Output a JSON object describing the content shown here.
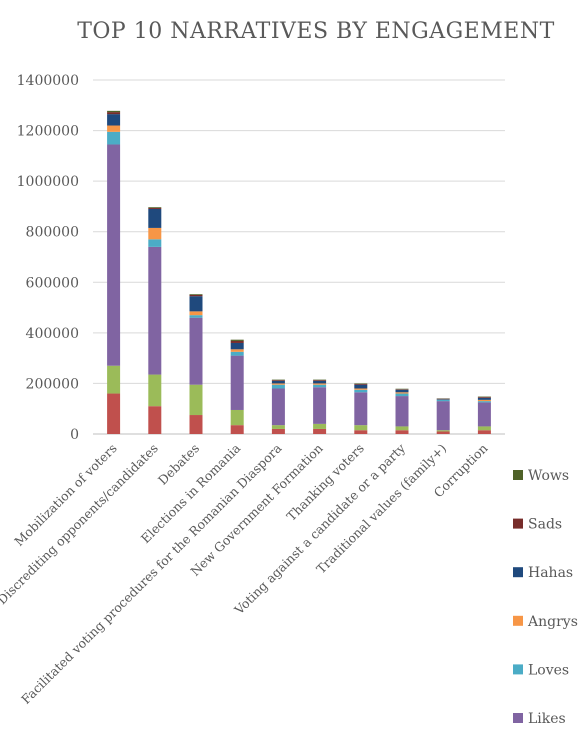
{
  "chart_data": {
    "type": "bar",
    "stacked": true,
    "title": "TOP 10 NARRATIVES BY ENGAGEMENT",
    "xlabel": "",
    "ylabel": "",
    "ylim": [
      0,
      1400000
    ],
    "yticks": [
      0,
      200000,
      400000,
      600000,
      800000,
      1000000,
      1200000,
      1400000
    ],
    "ytick_labels": [
      "0",
      "200000",
      "400000",
      "600000",
      "800000",
      "1000000",
      "1200000",
      "1400000"
    ],
    "grid": true,
    "legend_position": "right",
    "categories": [
      "Mobilization of voters",
      "Discrediting opponents/candidates",
      "Debates",
      "Elections in Romania",
      "Facilitated voting procedures for the Romanian Diaspora",
      "New Government Formation",
      "Thanking voters",
      "Voting against a candidate or a party",
      "Traditional values (family+)",
      "Corruption"
    ],
    "series": [
      {
        "name": "",
        "color": "#c0504d",
        "values": [
          160000,
          110000,
          75000,
          35000,
          20000,
          20000,
          15000,
          15000,
          10000,
          15000
        ]
      },
      {
        "name": "",
        "color": "#9bbb59",
        "values": [
          110000,
          125000,
          120000,
          60000,
          15000,
          20000,
          20000,
          15000,
          5000,
          15000
        ]
      },
      {
        "name": "Likes",
        "color": "#8064a2",
        "values": [
          875000,
          505000,
          265000,
          215000,
          145000,
          145000,
          130000,
          120000,
          115000,
          95000
        ]
      },
      {
        "name": "Loves",
        "color": "#4bacc6",
        "values": [
          50000,
          30000,
          10000,
          15000,
          15000,
          10000,
          10000,
          10000,
          5000,
          5000
        ]
      },
      {
        "name": "Angrys",
        "color": "#f79646",
        "values": [
          25000,
          45000,
          15000,
          10000,
          5000,
          5000,
          5000,
          5000,
          1000,
          5000
        ]
      },
      {
        "name": "Hahas",
        "color": "#1f497d",
        "values": [
          45000,
          75000,
          60000,
          25000,
          10000,
          10000,
          15000,
          10000,
          3000,
          8000
        ]
      },
      {
        "name": "Sads",
        "color": "#772c2a",
        "values": [
          8000,
          4000,
          5000,
          8000,
          3000,
          3000,
          3000,
          2000,
          1000,
          3000
        ]
      },
      {
        "name": "Wows",
        "color": "#4f6228",
        "values": [
          5000,
          3000,
          3000,
          5000,
          2000,
          2000,
          2000,
          2000,
          1000,
          2000
        ]
      }
    ],
    "legend": [
      "Wows",
      "Sads",
      "Hahas",
      "Angrys",
      "Loves",
      "Likes"
    ]
  }
}
